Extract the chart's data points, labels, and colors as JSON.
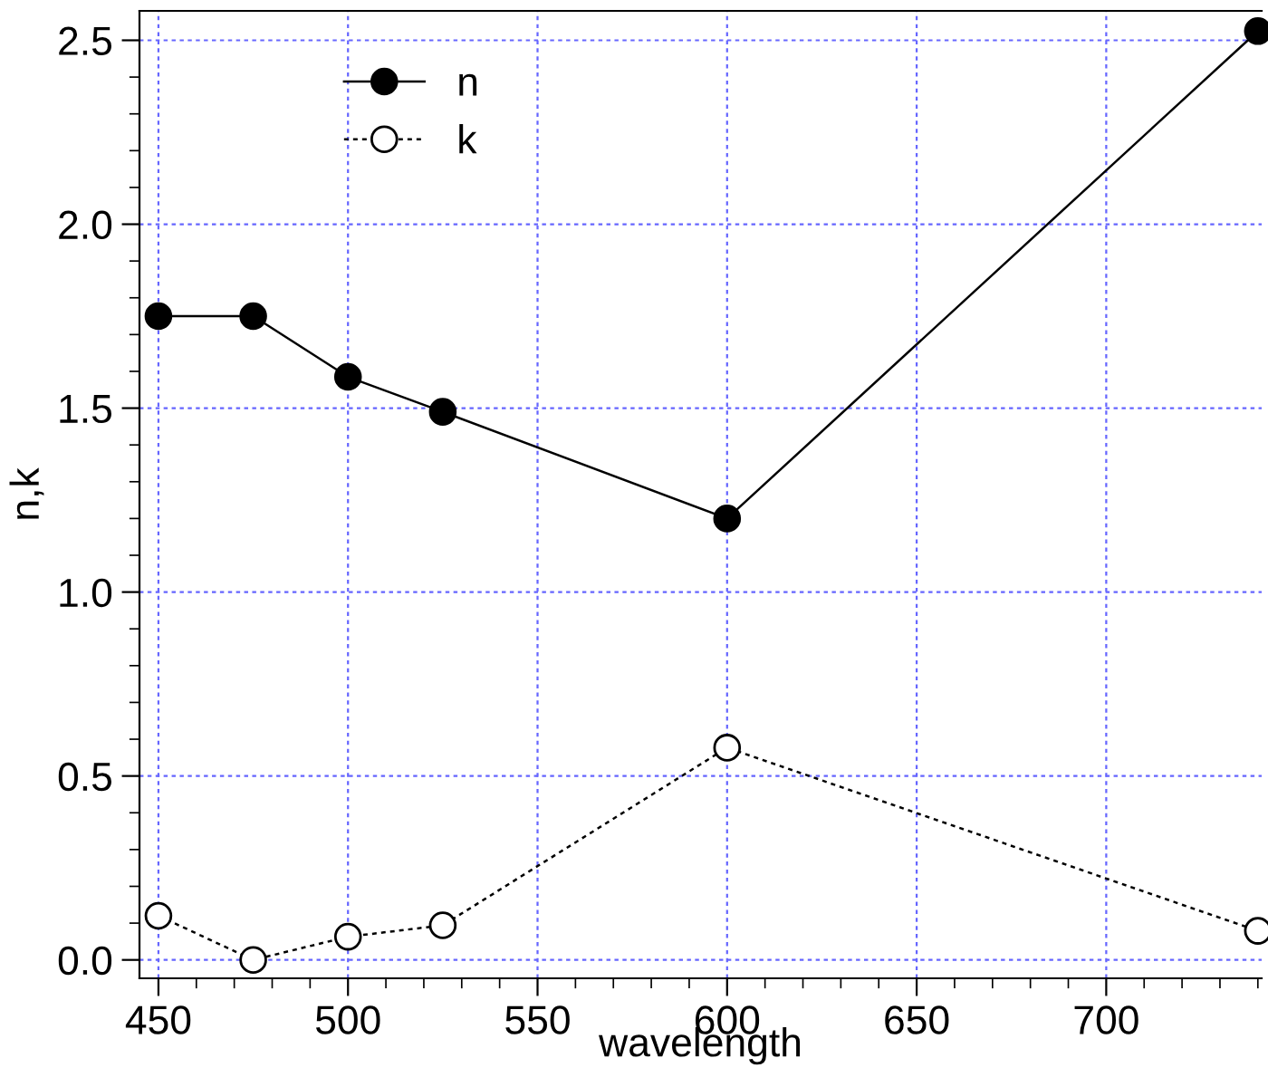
{
  "chart_data": {
    "type": "line",
    "xlabel": "wavelength",
    "ylabel": "n,k",
    "x": [
      450,
      475,
      500,
      525,
      600,
      740
    ],
    "series": [
      {
        "name": "n",
        "color": "#000000",
        "values": [
          1.75,
          1.75,
          1.585,
          1.49,
          1.2,
          2.525
        ],
        "marker": "circle",
        "line_style": "solid"
      },
      {
        "name": "k",
        "color": "#000000",
        "values": [
          0.12,
          0.0,
          0.063,
          0.094,
          0.577,
          0.079
        ],
        "marker": "circle",
        "line_style": "dashed"
      }
    ],
    "xlim": [
      445,
      741
    ],
    "ylim": [
      -0.05,
      2.58
    ],
    "xticks": [
      450,
      500,
      550,
      600,
      650,
      700
    ],
    "yticks": [
      {
        "value": 0,
        "label": "0.0"
      },
      {
        "value": 0.5,
        "label": "0.5"
      },
      {
        "value": 1,
        "label": "1.0"
      },
      {
        "value": 1.5,
        "label": "1.5"
      },
      {
        "value": 2,
        "label": "2.0"
      },
      {
        "value": 2.5,
        "label": "2.5"
      }
    ],
    "grid": true,
    "legend": "top left"
  }
}
